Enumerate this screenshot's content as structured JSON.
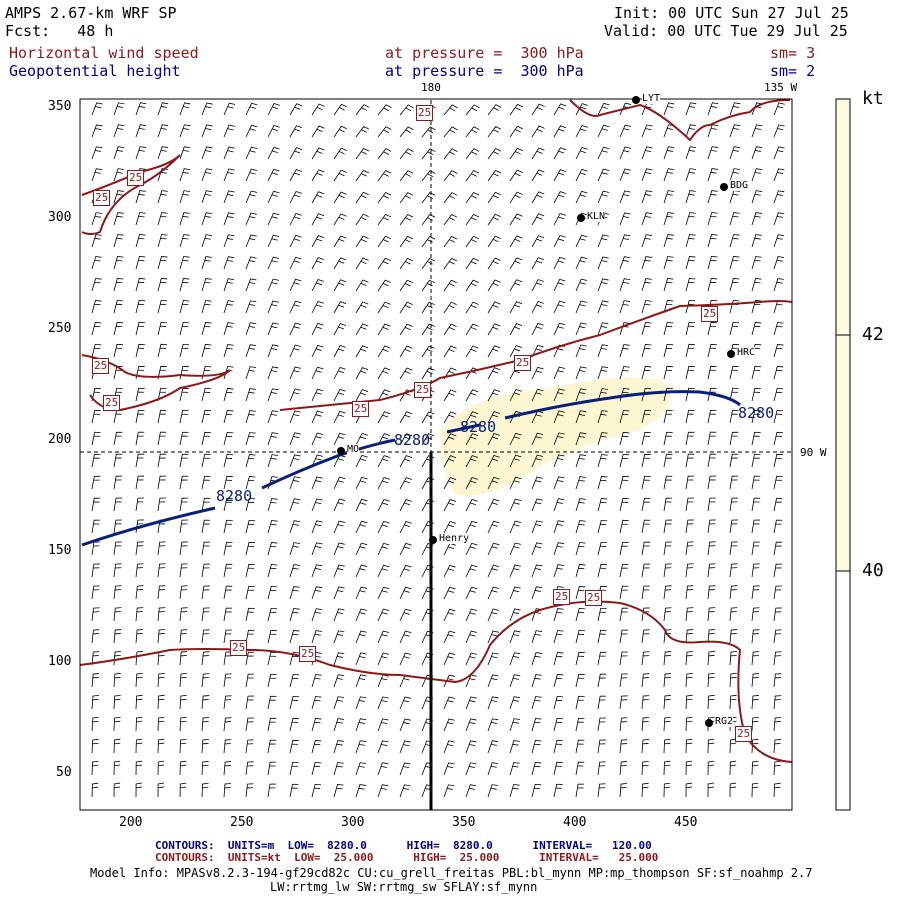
{
  "header": {
    "model": "AMPS 2.67-km WRF SP",
    "forecast": "Fcst:   48 h",
    "init": "Init: 00 UTC Sun 27 Jul 25",
    "valid": "Valid: 00 UTC Tue 29 Jul 25",
    "field1": "Horizontal wind speed",
    "field1_level": "at pressure =  300 hPa",
    "field1_sm": "sm= 3",
    "field2": "Geopotential height",
    "field2_level": "at pressure =  300 hPa",
    "field2_sm": "sm= 2"
  },
  "axes": {
    "x_ticks": [
      "200",
      "250",
      "300",
      "350",
      "400",
      "450"
    ],
    "y_ticks": [
      "50",
      "100",
      "150",
      "200",
      "250",
      "300",
      "350"
    ],
    "meridian_label": "180",
    "lon_135_label": "135 W",
    "lon_90_label": "90 W"
  },
  "colorbar": {
    "unit": "kt",
    "labels": [
      "42",
      "40"
    ],
    "colors": [
      "#fffbe0",
      "#fbf3c4"
    ]
  },
  "stations": [
    {
      "name": "KLN"
    },
    {
      "name": "BDG"
    },
    {
      "name": "HRC"
    },
    {
      "name": "Henry"
    },
    {
      "name": "RG2"
    },
    {
      "name": "LYT"
    },
    {
      "name": "MO"
    }
  ],
  "contours": {
    "height_label": "8280",
    "speed_label": "25",
    "height_color": "#0a1f78",
    "speed_color": "#8b1a1a"
  },
  "footer": {
    "contours1": "CONTOURS:  UNITS=m  LOW=  8280.0      HIGH=  8280.0      INTERVAL=   120.00",
    "contours2": "CONTOURS:  UNITS=kt  LOW=  25.000      HIGH=  25.000      INTERVAL=   25.000",
    "model_info1": "Model Info: MPASv8.2.3-194-gf29cd82c CU:cu_grell_freitas PBL:bl_mynn MP:mp_thompson SF:sf_noahmp 2.7",
    "model_info2": "LW:rrtmg_lw SW:rrtmg_sw SFLAY:sf_mynn"
  }
}
